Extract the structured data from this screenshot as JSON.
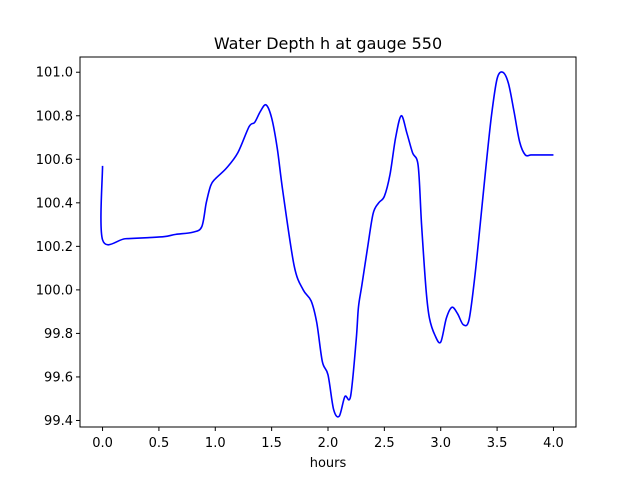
{
  "chart_data": {
    "type": "line",
    "title": "Water Depth h at gauge 550",
    "xlabel": "hours",
    "ylabel": "",
    "xlim": [
      -0.2,
      4.2
    ],
    "ylim": [
      99.37,
      101.07
    ],
    "grid": false,
    "xticks": [
      0.0,
      0.5,
      1.0,
      1.5,
      2.0,
      2.5,
      3.0,
      3.5,
      4.0
    ],
    "xtick_labels": [
      "0.0",
      "0.5",
      "1.0",
      "1.5",
      "2.0",
      "2.5",
      "3.0",
      "3.5",
      "4.0"
    ],
    "yticks": [
      99.4,
      99.6,
      99.8,
      100.0,
      100.2,
      100.4,
      100.6,
      100.8,
      101.0
    ],
    "ytick_labels": [
      "99.4",
      "99.6",
      "99.8",
      "100.0",
      "100.2",
      "100.4",
      "100.6",
      "100.8",
      "101.0"
    ],
    "series": [
      {
        "color": "#0000ff",
        "x": [
          0.0,
          0.0,
          0.2,
          0.4,
          0.55,
          0.65,
          0.8,
          0.88,
          0.92,
          0.96,
          1.0,
          1.1,
          1.2,
          1.3,
          1.35,
          1.4,
          1.45,
          1.5,
          1.55,
          1.6,
          1.7,
          1.78,
          1.85,
          1.9,
          1.95,
          2.0,
          2.05,
          2.1,
          2.15,
          2.2,
          2.25,
          2.27,
          2.3,
          2.35,
          2.4,
          2.45,
          2.5,
          2.55,
          2.6,
          2.65,
          2.7,
          2.75,
          2.8,
          2.83,
          2.87,
          2.9,
          2.95,
          3.0,
          3.05,
          3.1,
          3.15,
          3.2,
          3.25,
          3.3,
          3.35,
          3.4,
          3.45,
          3.5,
          3.55,
          3.6,
          3.65,
          3.7,
          3.75,
          3.8,
          3.85,
          3.9,
          3.95,
          4.0
        ],
        "y": [
          100.57,
          100.23,
          100.235,
          100.24,
          100.245,
          100.255,
          100.265,
          100.29,
          100.4,
          100.48,
          100.51,
          100.56,
          100.63,
          100.75,
          100.77,
          100.82,
          100.85,
          100.79,
          100.65,
          100.45,
          100.11,
          100.0,
          99.95,
          99.85,
          99.67,
          99.61,
          99.45,
          99.42,
          99.51,
          99.51,
          99.77,
          99.92,
          100.02,
          100.19,
          100.35,
          100.4,
          100.43,
          100.53,
          100.7,
          100.8,
          100.72,
          100.63,
          100.57,
          100.3,
          100.0,
          99.87,
          99.79,
          99.76,
          99.87,
          99.92,
          99.89,
          99.84,
          99.86,
          100.05,
          100.3,
          100.56,
          100.8,
          100.97,
          101.0,
          100.95,
          100.82,
          100.68,
          100.62,
          100.62,
          100.62,
          100.62,
          100.62,
          100.62
        ]
      }
    ]
  }
}
